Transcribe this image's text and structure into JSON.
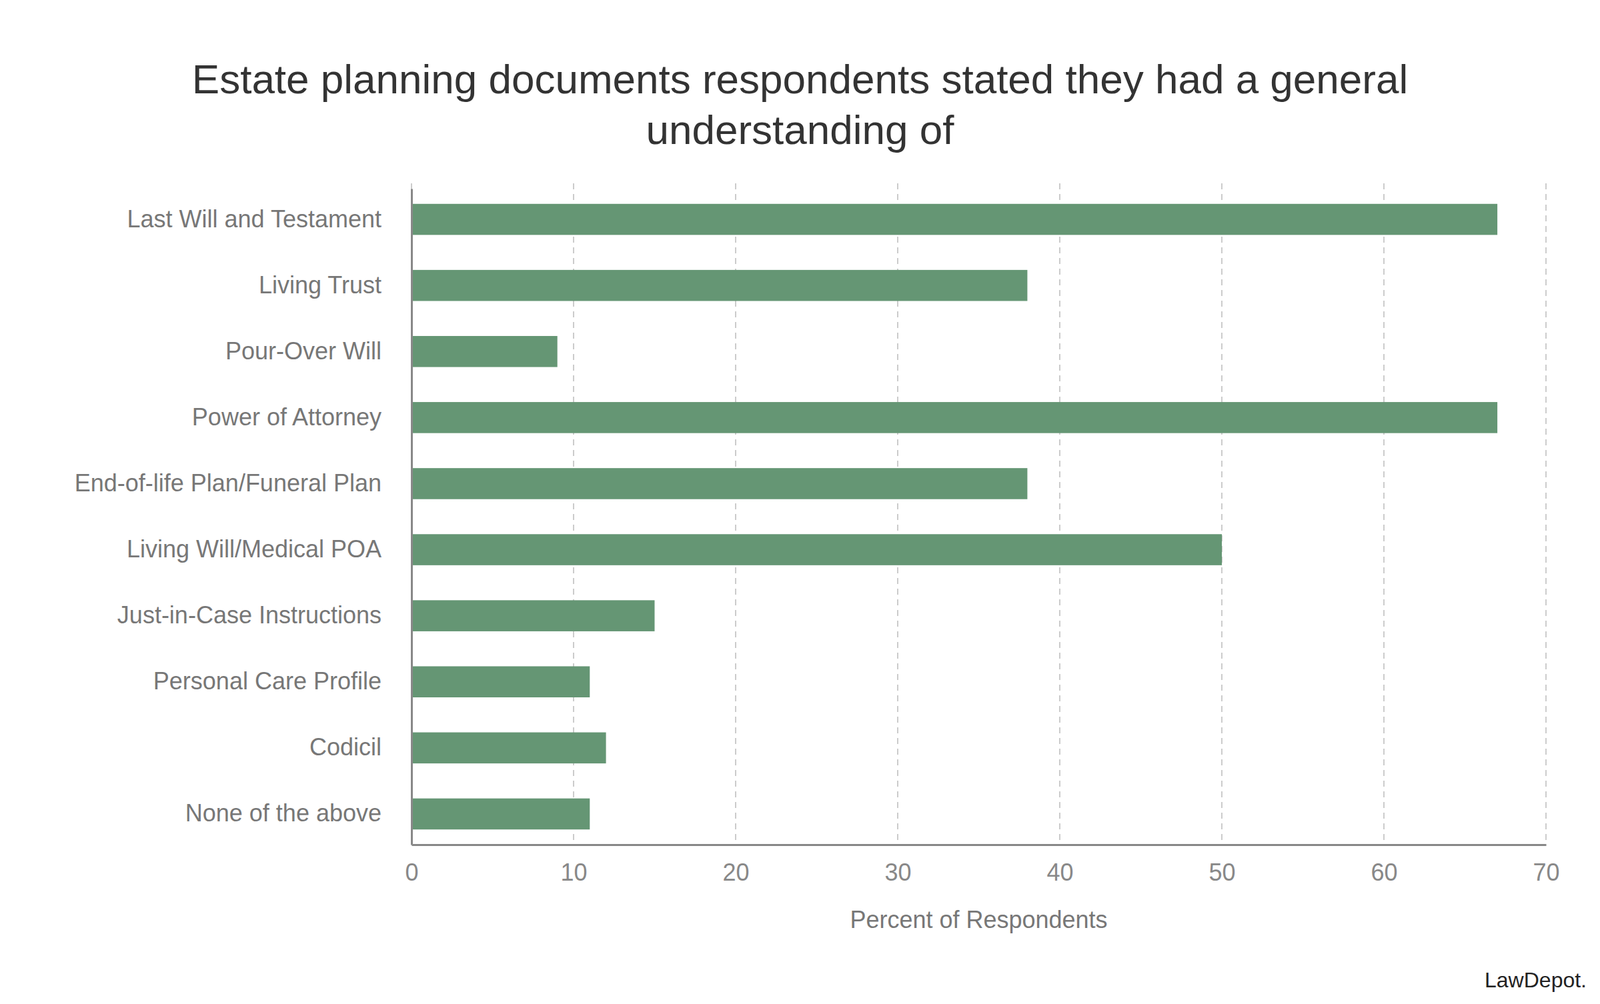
{
  "chart_data": {
    "type": "bar",
    "orientation": "horizontal",
    "title": "Estate planning documents respondents stated they had a general understanding of",
    "x_label": "Percent of Respondents",
    "source": "LawDepot.",
    "categories": [
      "Last Will and Testament",
      "Living Trust",
      "Pour-Over Will",
      "Power of Attorney",
      "End-of-life Plan/Funeral Plan",
      "Living Will/Medical POA",
      "Just-in-Case Instructions",
      "Personal Care Profile",
      "Codicil",
      "None of the above"
    ],
    "values": [
      67,
      38,
      9,
      67,
      38,
      50,
      15,
      11,
      12,
      11
    ],
    "color": "#659674",
    "xlim": [
      0,
      70
    ],
    "xticks": [
      0,
      10,
      20,
      30,
      40,
      50,
      60,
      70
    ],
    "grid": true
  }
}
